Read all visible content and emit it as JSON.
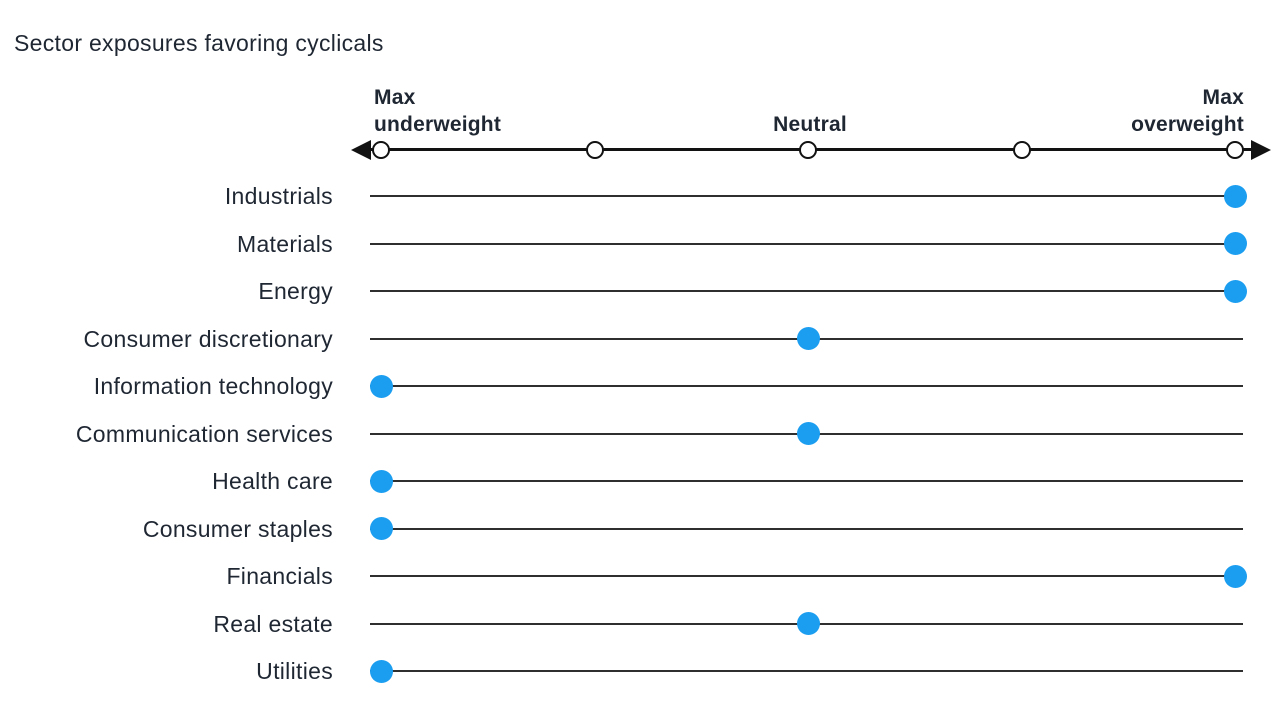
{
  "title": "Sector exposures favoring cyclicals",
  "colors": {
    "dot": "#1b9df0",
    "row_line": "#2f2f2f",
    "axis": "#121212",
    "text": "#1f2733"
  },
  "chart_data": {
    "type": "scatter",
    "subtype": "dot-plot-positioning-scale",
    "title": "Sector exposures favoring cyclicals",
    "scale": {
      "left_label": "Max\nunderweight",
      "center_label": "Neutral",
      "right_label": "Max\noverweight",
      "min": -1,
      "max": 1,
      "ticks": [
        -1,
        -0.5,
        0,
        0.5,
        1
      ],
      "grid": false,
      "arrows": "both-ends"
    },
    "rows": [
      {
        "label": "Industrials",
        "position": "max-overweight",
        "value": 1
      },
      {
        "label": "Materials",
        "position": "max-overweight",
        "value": 1
      },
      {
        "label": "Energy",
        "position": "max-overweight",
        "value": 1
      },
      {
        "label": "Consumer discretionary",
        "position": "neutral",
        "value": 0
      },
      {
        "label": "Information technology",
        "position": "max-underweight",
        "value": -1
      },
      {
        "label": "Communication services",
        "position": "neutral",
        "value": 0
      },
      {
        "label": "Health care",
        "position": "max-underweight",
        "value": -1
      },
      {
        "label": "Consumer staples",
        "position": "max-underweight",
        "value": -1
      },
      {
        "label": "Financials",
        "position": "max-overweight",
        "value": 1
      },
      {
        "label": "Real estate",
        "position": "neutral",
        "value": 0
      },
      {
        "label": "Utilities",
        "position": "max-underweight",
        "value": -1
      }
    ]
  }
}
